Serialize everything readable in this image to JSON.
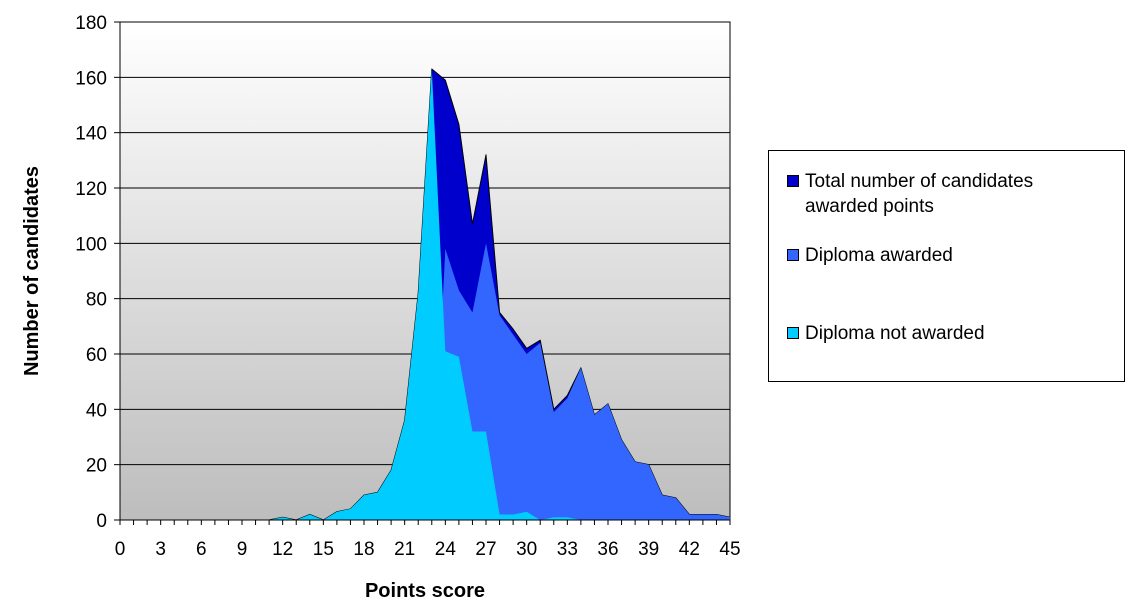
{
  "chart_data": {
    "type": "area",
    "title": "",
    "xlabel": "Points score",
    "ylabel": "Number of candidates",
    "xlim": [
      0,
      45
    ],
    "ylim": [
      0,
      180
    ],
    "yticks": [
      0,
      20,
      40,
      60,
      80,
      100,
      120,
      140,
      160,
      180
    ],
    "xticks": [
      0,
      3,
      6,
      9,
      12,
      15,
      18,
      21,
      24,
      27,
      30,
      33,
      36,
      39,
      42,
      45
    ],
    "grid": "horizontal",
    "background": "vertical gradient, white to grey",
    "legend_position": "right",
    "x": [
      0,
      1,
      2,
      3,
      4,
      5,
      6,
      7,
      8,
      9,
      10,
      11,
      12,
      13,
      14,
      15,
      16,
      17,
      18,
      19,
      20,
      21,
      22,
      23,
      24,
      25,
      26,
      27,
      28,
      29,
      30,
      31,
      32,
      33,
      34,
      35,
      36,
      37,
      38,
      39,
      40,
      41,
      42,
      43,
      44,
      45
    ],
    "series": [
      {
        "name": "Total number of candidates awarded points",
        "color": "#0000CC",
        "values": [
          0,
          0,
          0,
          0,
          0,
          0,
          0,
          0,
          0,
          0,
          0,
          0,
          1,
          0,
          2,
          0,
          3,
          4,
          9,
          10,
          18,
          36,
          82,
          163,
          159,
          143,
          107,
          132,
          75,
          69,
          62,
          65,
          40,
          45,
          55,
          38,
          42,
          29,
          21,
          20,
          9,
          8,
          2,
          2,
          2,
          1
        ]
      },
      {
        "name": "Diploma awarded",
        "color": "#3366FF",
        "values": [
          0,
          0,
          0,
          0,
          0,
          0,
          0,
          0,
          0,
          0,
          0,
          0,
          0,
          0,
          0,
          0,
          0,
          0,
          0,
          0,
          0,
          0,
          0,
          0,
          98,
          83,
          75,
          100,
          74,
          67,
          60,
          64,
          39,
          44,
          55,
          38,
          42,
          29,
          21,
          20,
          9,
          8,
          2,
          2,
          2,
          1
        ]
      },
      {
        "name": "Diploma not awarded",
        "color": "#00CCFF",
        "values": [
          0,
          0,
          0,
          0,
          0,
          0,
          0,
          0,
          0,
          0,
          0,
          0,
          1,
          0,
          2,
          0,
          3,
          4,
          9,
          10,
          18,
          36,
          82,
          163,
          61,
          59,
          32,
          32,
          2,
          2,
          3,
          0,
          1,
          1,
          0,
          0,
          0,
          0,
          0,
          0,
          0,
          0,
          0,
          0,
          0,
          0
        ]
      }
    ]
  }
}
